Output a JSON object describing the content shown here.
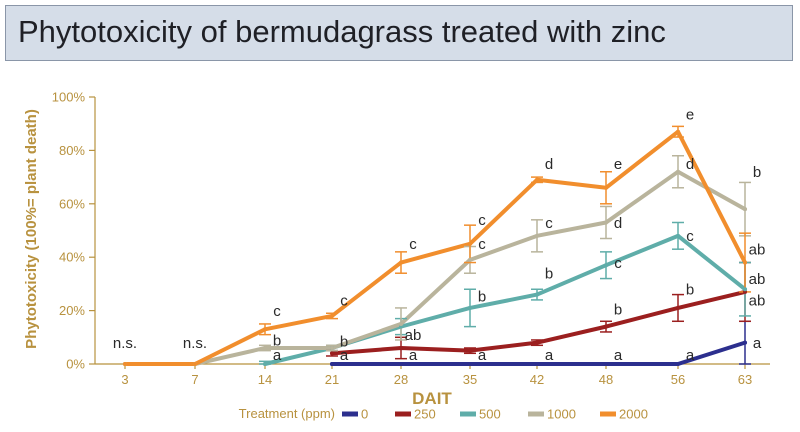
{
  "title": "Phytotoxicity of bermudagrass treated with zinc",
  "chart_data": {
    "type": "line",
    "title": "Phytotoxicity of bermudagrass treated with zinc",
    "xlabel": "DAIT",
    "ylabel": "Phytotoxicity (100%= plant death)",
    "categories": [
      "3",
      "7",
      "14",
      "21",
      "28",
      "35",
      "42",
      "48",
      "56",
      "63"
    ],
    "ylim": [
      0,
      100
    ],
    "yticks": [
      "0%",
      "20%",
      "40%",
      "60%",
      "80%",
      "100%"
    ],
    "grid": false,
    "legend_title": "Treatment (ppm)",
    "legend_position": "bottom",
    "series": [
      {
        "name": "0",
        "color": "#2c2f8e",
        "values": [
          null,
          null,
          null,
          0,
          0,
          0,
          0,
          0,
          0,
          8
        ],
        "errors": [
          null,
          null,
          null,
          null,
          null,
          null,
          null,
          null,
          null,
          8
        ]
      },
      {
        "name": "250",
        "color": "#9b1f1f",
        "values": [
          null,
          null,
          null,
          4,
          6,
          5,
          8,
          14,
          21,
          27
        ],
        "errors": [
          null,
          null,
          null,
          1,
          4,
          1,
          1,
          2,
          5,
          11
        ]
      },
      {
        "name": "500",
        "color": "#5fada9",
        "values": [
          null,
          null,
          0,
          6,
          14,
          21,
          26,
          37,
          48,
          28
        ],
        "errors": [
          null,
          null,
          1,
          1,
          3,
          7,
          2,
          5,
          5,
          10
        ]
      },
      {
        "name": "1000",
        "color": "#b9b49c",
        "values": [
          0,
          0,
          6,
          6,
          15,
          39,
          48,
          53,
          72,
          58
        ],
        "errors": [
          null,
          null,
          1,
          1,
          6,
          5,
          6,
          6,
          6,
          10
        ]
      },
      {
        "name": "2000",
        "color": "#f18e2d",
        "values": [
          0,
          0,
          13,
          18,
          38,
          45,
          69,
          66,
          87,
          38
        ],
        "errors": [
          null,
          null,
          2,
          1,
          4,
          7,
          1,
          6,
          2,
          11
        ]
      }
    ],
    "annotations": [
      {
        "text": "n.s.",
        "x": "3",
        "y": 6
      },
      {
        "text": "n.s.",
        "x": "7",
        "y": 6
      },
      {
        "text": "c",
        "x": "14",
        "y": 18
      },
      {
        "text": "b",
        "x": "14",
        "y": 7
      },
      {
        "text": "a",
        "x": "14",
        "y": 1.5
      },
      {
        "text": "c",
        "x": "21",
        "y": 22
      },
      {
        "text": "b",
        "x": "21",
        "y": 6.5
      },
      {
        "text": "a",
        "x": "21",
        "y": 1.5
      },
      {
        "text": "c",
        "x": "28",
        "y": 43
      },
      {
        "text": "ab",
        "x": "28",
        "y": 9
      },
      {
        "text": "a",
        "x": "28",
        "y": 1.5
      },
      {
        "text": "c",
        "x": "35",
        "y": 52
      },
      {
        "text": "c",
        "x": "35",
        "y": 43
      },
      {
        "text": "b",
        "x": "35",
        "y": 23.5
      },
      {
        "text": "a",
        "x": "35",
        "y": 1.5
      },
      {
        "text": "d",
        "x": "42",
        "y": 73
      },
      {
        "text": "c",
        "x": "42",
        "y": 51
      },
      {
        "text": "b",
        "x": "42",
        "y": 32
      },
      {
        "text": "a",
        "x": "42",
        "y": 1.5
      },
      {
        "text": "e",
        "x": "48",
        "y": 73
      },
      {
        "text": "d",
        "x": "48",
        "y": 51
      },
      {
        "text": "c",
        "x": "48",
        "y": 36
      },
      {
        "text": "b",
        "x": "48",
        "y": 18.5
      },
      {
        "text": "a",
        "x": "48",
        "y": 1.5
      },
      {
        "text": "e",
        "x": "56",
        "y": 91.5
      },
      {
        "text": "d",
        "x": "56",
        "y": 73
      },
      {
        "text": "c",
        "x": "56",
        "y": 46
      },
      {
        "text": "b",
        "x": "56",
        "y": 26
      },
      {
        "text": "a",
        "x": "56",
        "y": 1.5
      },
      {
        "text": "b",
        "x": "63",
        "y": 70
      },
      {
        "text": "ab",
        "x": "63",
        "y": 41
      },
      {
        "text": "ab",
        "x": "63",
        "y": 30
      },
      {
        "text": "ab",
        "x": "63",
        "y": 22
      },
      {
        "text": "a",
        "x": "63",
        "y": 6
      }
    ]
  }
}
